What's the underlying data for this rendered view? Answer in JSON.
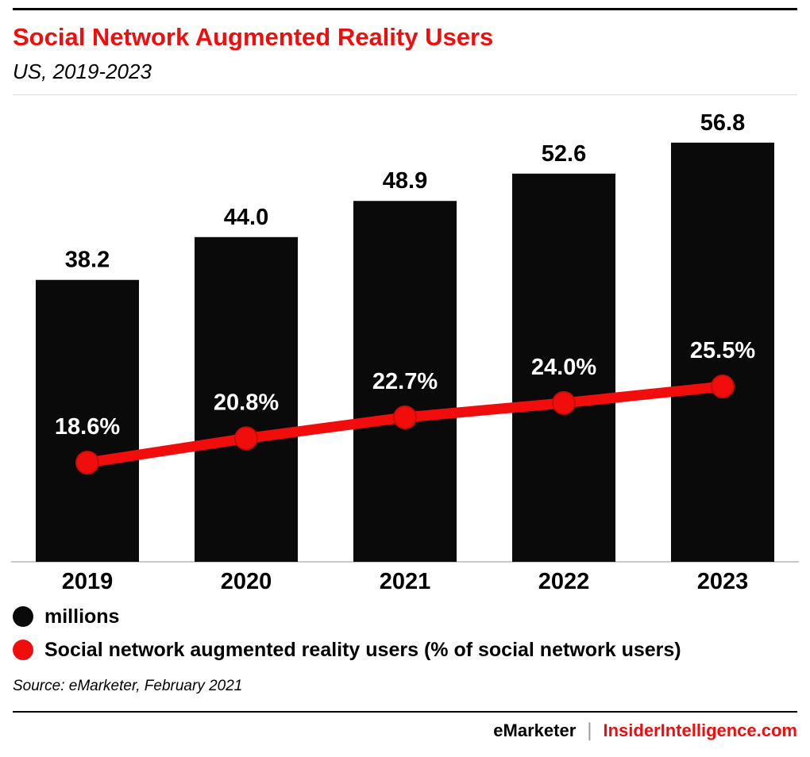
{
  "header": {
    "title": "Social Network Augmented Reality Users",
    "subtitle": "US, 2019-2023"
  },
  "colors": {
    "accent_red": "#f20d0d",
    "bar_black": "#0a0a0a",
    "axis_gray": "#c9c9c9",
    "label_white": "#ffffff",
    "text_black": "#000000"
  },
  "chart_data": {
    "type": "bar",
    "categories": [
      "2019",
      "2020",
      "2021",
      "2022",
      "2023"
    ],
    "series": [
      {
        "name": "millions",
        "type": "bar",
        "values": [
          38.2,
          44.0,
          48.9,
          52.6,
          56.8
        ],
        "labels": [
          "38.2",
          "44.0",
          "48.9",
          "52.6",
          "56.8"
        ],
        "color": "#0a0a0a"
      },
      {
        "name": "Social network augmented reality users (% of social network users)",
        "type": "line",
        "values": [
          18.6,
          20.8,
          22.7,
          24.0,
          25.5
        ],
        "labels": [
          "18.6%",
          "20.8%",
          "22.7%",
          "24.0%",
          "25.5%"
        ],
        "color": "#f20d0d"
      }
    ],
    "title": "Social Network Augmented Reality Users",
    "subtitle": "US, 2019-2023",
    "xlabel": "",
    "ylabel": "",
    "grid": false,
    "legend_position": "bottom"
  },
  "source": "Source: eMarketer, February 2021",
  "footer": {
    "brand": "eMarketer",
    "separator": "|",
    "site": "InsiderIntelligence.com"
  }
}
